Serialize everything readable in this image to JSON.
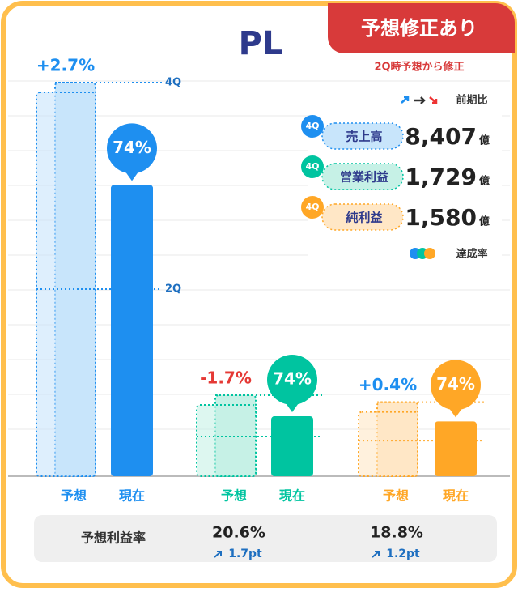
{
  "badge": "予想修正あり",
  "chart_data": {
    "type": "bar",
    "title": "PL",
    "subtitle": "2Q時予想から修正",
    "bar_labels": [
      "予想",
      "現在"
    ],
    "line_labels": [
      "4Q",
      "2Q"
    ],
    "period_badge": "4Q",
    "unit": "億",
    "legend": {
      "change": "前期比",
      "achievement": "達成率"
    },
    "groups": [
      {
        "name": "売上高",
        "color": "#1e8ff0",
        "light": "#c8e5fb",
        "forecast": 8407,
        "forecast_label": "8,407",
        "q2": 3995,
        "achievement": 74,
        "achievement_label": "74%",
        "change": 2.7,
        "change_label": "+2.7%"
      },
      {
        "name": "営業利益",
        "color": "#00c4a0",
        "light": "#c6f1e6",
        "forecast": 1729,
        "forecast_label": "1,729",
        "q2": 847,
        "achievement": 74,
        "achievement_label": "74%",
        "change": -1.7,
        "change_label": "-1.7%"
      },
      {
        "name": "純利益",
        "color": "#ffa726",
        "light": "#ffe7c6",
        "forecast": 1580,
        "forecast_label": "1,580",
        "q2": 758,
        "achievement": 74,
        "achievement_label": "74%",
        "change": 0.4,
        "change_label": "+0.4%"
      }
    ],
    "margin": {
      "title": "予想利益率",
      "values": [
        20.6,
        18.8
      ],
      "labels": [
        "20.6%",
        "18.8%"
      ],
      "changes": [
        1.7,
        1.2
      ],
      "change_labels": [
        "1.7pt",
        "1.2pt"
      ]
    }
  }
}
